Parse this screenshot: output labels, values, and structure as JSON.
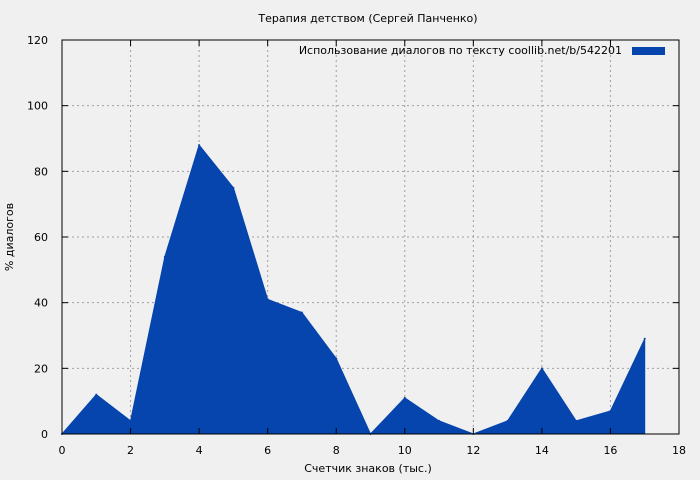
{
  "chart_data": {
    "type": "area",
    "title": "Терапия детством (Сергей Панченко)",
    "xlabel": "Счетчик знаков (тыс.)",
    "ylabel": "% диалогов",
    "xlim": [
      0,
      18
    ],
    "ylim": [
      0,
      120
    ],
    "xticks": [
      "0",
      "2",
      "4",
      "6",
      "8",
      "10",
      "12",
      "14",
      "16",
      "18"
    ],
    "yticks": [
      "0",
      "20",
      "40",
      "60",
      "80",
      "100",
      "120"
    ],
    "grid": true,
    "legend_position": "top-right",
    "colors": {
      "series": "#0645ad",
      "background": "#f0f0f0"
    },
    "series": [
      {
        "name": "Использование диалогов по тексту  coollib.net/b/542201",
        "x": [
          0,
          1,
          2,
          3,
          4,
          5,
          6,
          7,
          8,
          9,
          10,
          11,
          12,
          13,
          14,
          15,
          16,
          17
        ],
        "values": [
          0,
          12,
          4,
          54,
          88,
          75,
          41,
          37,
          23,
          0,
          11,
          4,
          0,
          4,
          20,
          4,
          7,
          29
        ]
      }
    ]
  }
}
